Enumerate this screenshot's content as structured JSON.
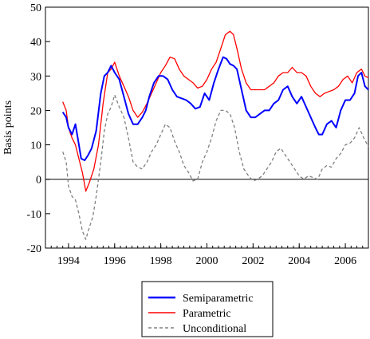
{
  "chart_data": {
    "type": "line",
    "title": "",
    "xlabel": "",
    "ylabel": "Basis points",
    "xlim": [
      1993.0,
      2007.0
    ],
    "ylim": [
      -20,
      50
    ],
    "x_ticks": [
      1994,
      1996,
      1998,
      2000,
      2002,
      2004,
      2006
    ],
    "x_tick_labels": [
      "1994",
      "1996",
      "1998",
      "2000",
      "2002",
      "2004",
      "2006"
    ],
    "y_ticks": [
      -20,
      -10,
      0,
      10,
      20,
      30,
      40,
      50
    ],
    "y_tick_labels": [
      "-20",
      "-10",
      "0",
      "10",
      "20",
      "30",
      "40",
      "50"
    ],
    "zero_line": true,
    "grid": false,
    "legend_position": "bottom-center",
    "series": [
      {
        "name": "Semiparametric",
        "color": "#0000ff",
        "style": "solid",
        "x": [
          1993.75,
          1993.9,
          1994.0,
          1994.15,
          1994.3,
          1994.4,
          1994.55,
          1994.7,
          1994.85,
          1995.0,
          1995.2,
          1995.4,
          1995.55,
          1995.7,
          1995.85,
          1996.0,
          1996.2,
          1996.4,
          1996.6,
          1996.8,
          1996.9,
          1997.0,
          1997.2,
          1997.35,
          1997.5,
          1997.7,
          1997.9,
          1998.1,
          1998.3,
          1998.5,
          1998.7,
          1998.9,
          1999.1,
          1999.3,
          1999.5,
          1999.7,
          1999.9,
          2000.1,
          2000.3,
          2000.5,
          2000.7,
          2000.85,
          2001.0,
          2001.15,
          2001.3,
          2001.5,
          2001.7,
          2001.9,
          2002.1,
          2002.3,
          2002.5,
          2002.7,
          2002.9,
          2003.1,
          2003.3,
          2003.5,
          2003.7,
          2003.9,
          2004.1,
          2004.3,
          2004.5,
          2004.7,
          2004.85,
          2005.0,
          2005.2,
          2005.4,
          2005.6,
          2005.8,
          2006.0,
          2006.2,
          2006.4,
          2006.55,
          2006.7,
          2006.85,
          2007.0
        ],
        "y": [
          19.5,
          18,
          15,
          13,
          16,
          12,
          6,
          5.5,
          7,
          9,
          14,
          25,
          30,
          31,
          33,
          31,
          29,
          24,
          19,
          16,
          16,
          16,
          18,
          20,
          24,
          28,
          30,
          30,
          29,
          26,
          24,
          23.5,
          23,
          22,
          20.5,
          21,
          25,
          23,
          28,
          32,
          35.5,
          35,
          33.5,
          33,
          32,
          26,
          20,
          18,
          18,
          19,
          20,
          20,
          22,
          23,
          26,
          27,
          24,
          22,
          24,
          21,
          18,
          15,
          13,
          13,
          16,
          17,
          15,
          20,
          23,
          23,
          25,
          30,
          31,
          27,
          26
        ]
      },
      {
        "name": "Parametric",
        "color": "#ff0000",
        "style": "solid",
        "x": [
          1993.75,
          1993.9,
          1994.0,
          1994.15,
          1994.3,
          1994.45,
          1994.6,
          1994.75,
          1994.9,
          1995.1,
          1995.3,
          1995.5,
          1995.7,
          1995.85,
          1996.0,
          1996.2,
          1996.4,
          1996.6,
          1996.8,
          1997.0,
          1997.2,
          1997.4,
          1997.6,
          1997.8,
          1998.0,
          1998.2,
          1998.4,
          1998.6,
          1998.8,
          1999.0,
          1999.2,
          1999.4,
          1999.6,
          1999.8,
          2000.0,
          2000.2,
          2000.4,
          2000.6,
          2000.8,
          2001.0,
          2001.15,
          2001.3,
          2001.5,
          2001.7,
          2001.9,
          2002.1,
          2002.3,
          2002.5,
          2002.7,
          2002.9,
          2003.1,
          2003.3,
          2003.5,
          2003.7,
          2003.9,
          2004.1,
          2004.3,
          2004.5,
          2004.7,
          2004.9,
          2005.1,
          2005.3,
          2005.5,
          2005.7,
          2005.9,
          2006.1,
          2006.3,
          2006.5,
          2006.7,
          2006.85,
          2007.0
        ],
        "y": [
          22.5,
          20,
          15,
          12,
          10,
          6,
          2,
          -3.5,
          -1,
          3,
          10,
          22,
          31,
          32,
          34,
          30,
          27,
          24,
          20,
          18,
          19.5,
          22,
          25,
          28,
          31,
          33,
          35.5,
          35,
          32,
          30,
          29,
          28,
          26.5,
          27,
          29,
          32,
          34,
          38,
          42,
          43,
          42,
          38,
          32,
          28,
          26,
          26,
          26,
          26,
          27,
          28,
          30,
          31,
          31,
          32.5,
          31,
          31,
          30,
          27,
          25,
          24,
          25,
          25.5,
          26,
          27,
          29,
          30,
          28,
          31,
          32,
          30,
          29.5
        ]
      },
      {
        "name": "Unconditional",
        "color": "#808080",
        "style": "dashed",
        "x": [
          1993.75,
          1993.9,
          1994.0,
          1994.15,
          1994.3,
          1994.45,
          1994.6,
          1994.75,
          1994.9,
          1995.05,
          1995.2,
          1995.4,
          1995.55,
          1995.7,
          1995.85,
          1996.0,
          1996.2,
          1996.4,
          1996.6,
          1996.8,
          1997.0,
          1997.2,
          1997.4,
          1997.6,
          1997.8,
          1998.0,
          1998.2,
          1998.4,
          1998.6,
          1998.8,
          1999.0,
          1999.2,
          1999.4,
          1999.6,
          1999.8,
          2000.0,
          2000.2,
          2000.4,
          2000.6,
          2000.8,
          2001.0,
          2001.2,
          2001.4,
          2001.6,
          2001.8,
          2002.0,
          2002.2,
          2002.4,
          2002.6,
          2002.8,
          2003.0,
          2003.2,
          2003.4,
          2003.6,
          2003.8,
          2004.0,
          2004.2,
          2004.4,
          2004.6,
          2004.8,
          2005.0,
          2005.2,
          2005.4,
          2005.6,
          2005.8,
          2006.0,
          2006.2,
          2006.4,
          2006.6,
          2006.8,
          2007.0
        ],
        "y": [
          8,
          5,
          -2,
          -5,
          -6,
          -10,
          -15,
          -17.5,
          -14,
          -11,
          -5,
          5,
          14,
          19,
          21,
          24.5,
          21,
          18,
          12,
          5,
          3.5,
          3,
          5,
          8,
          10,
          13,
          16,
          15,
          11,
          8,
          4,
          2,
          -0.5,
          0,
          5,
          8,
          12,
          17,
          20,
          20,
          19,
          15,
          8,
          3,
          1,
          -0.5,
          0,
          1,
          3,
          5,
          8,
          9,
          7,
          5,
          3,
          1,
          0,
          1,
          0.5,
          0,
          3,
          4,
          3.5,
          6,
          7.5,
          10,
          10.5,
          12,
          15,
          12,
          9.5
        ]
      }
    ]
  }
}
